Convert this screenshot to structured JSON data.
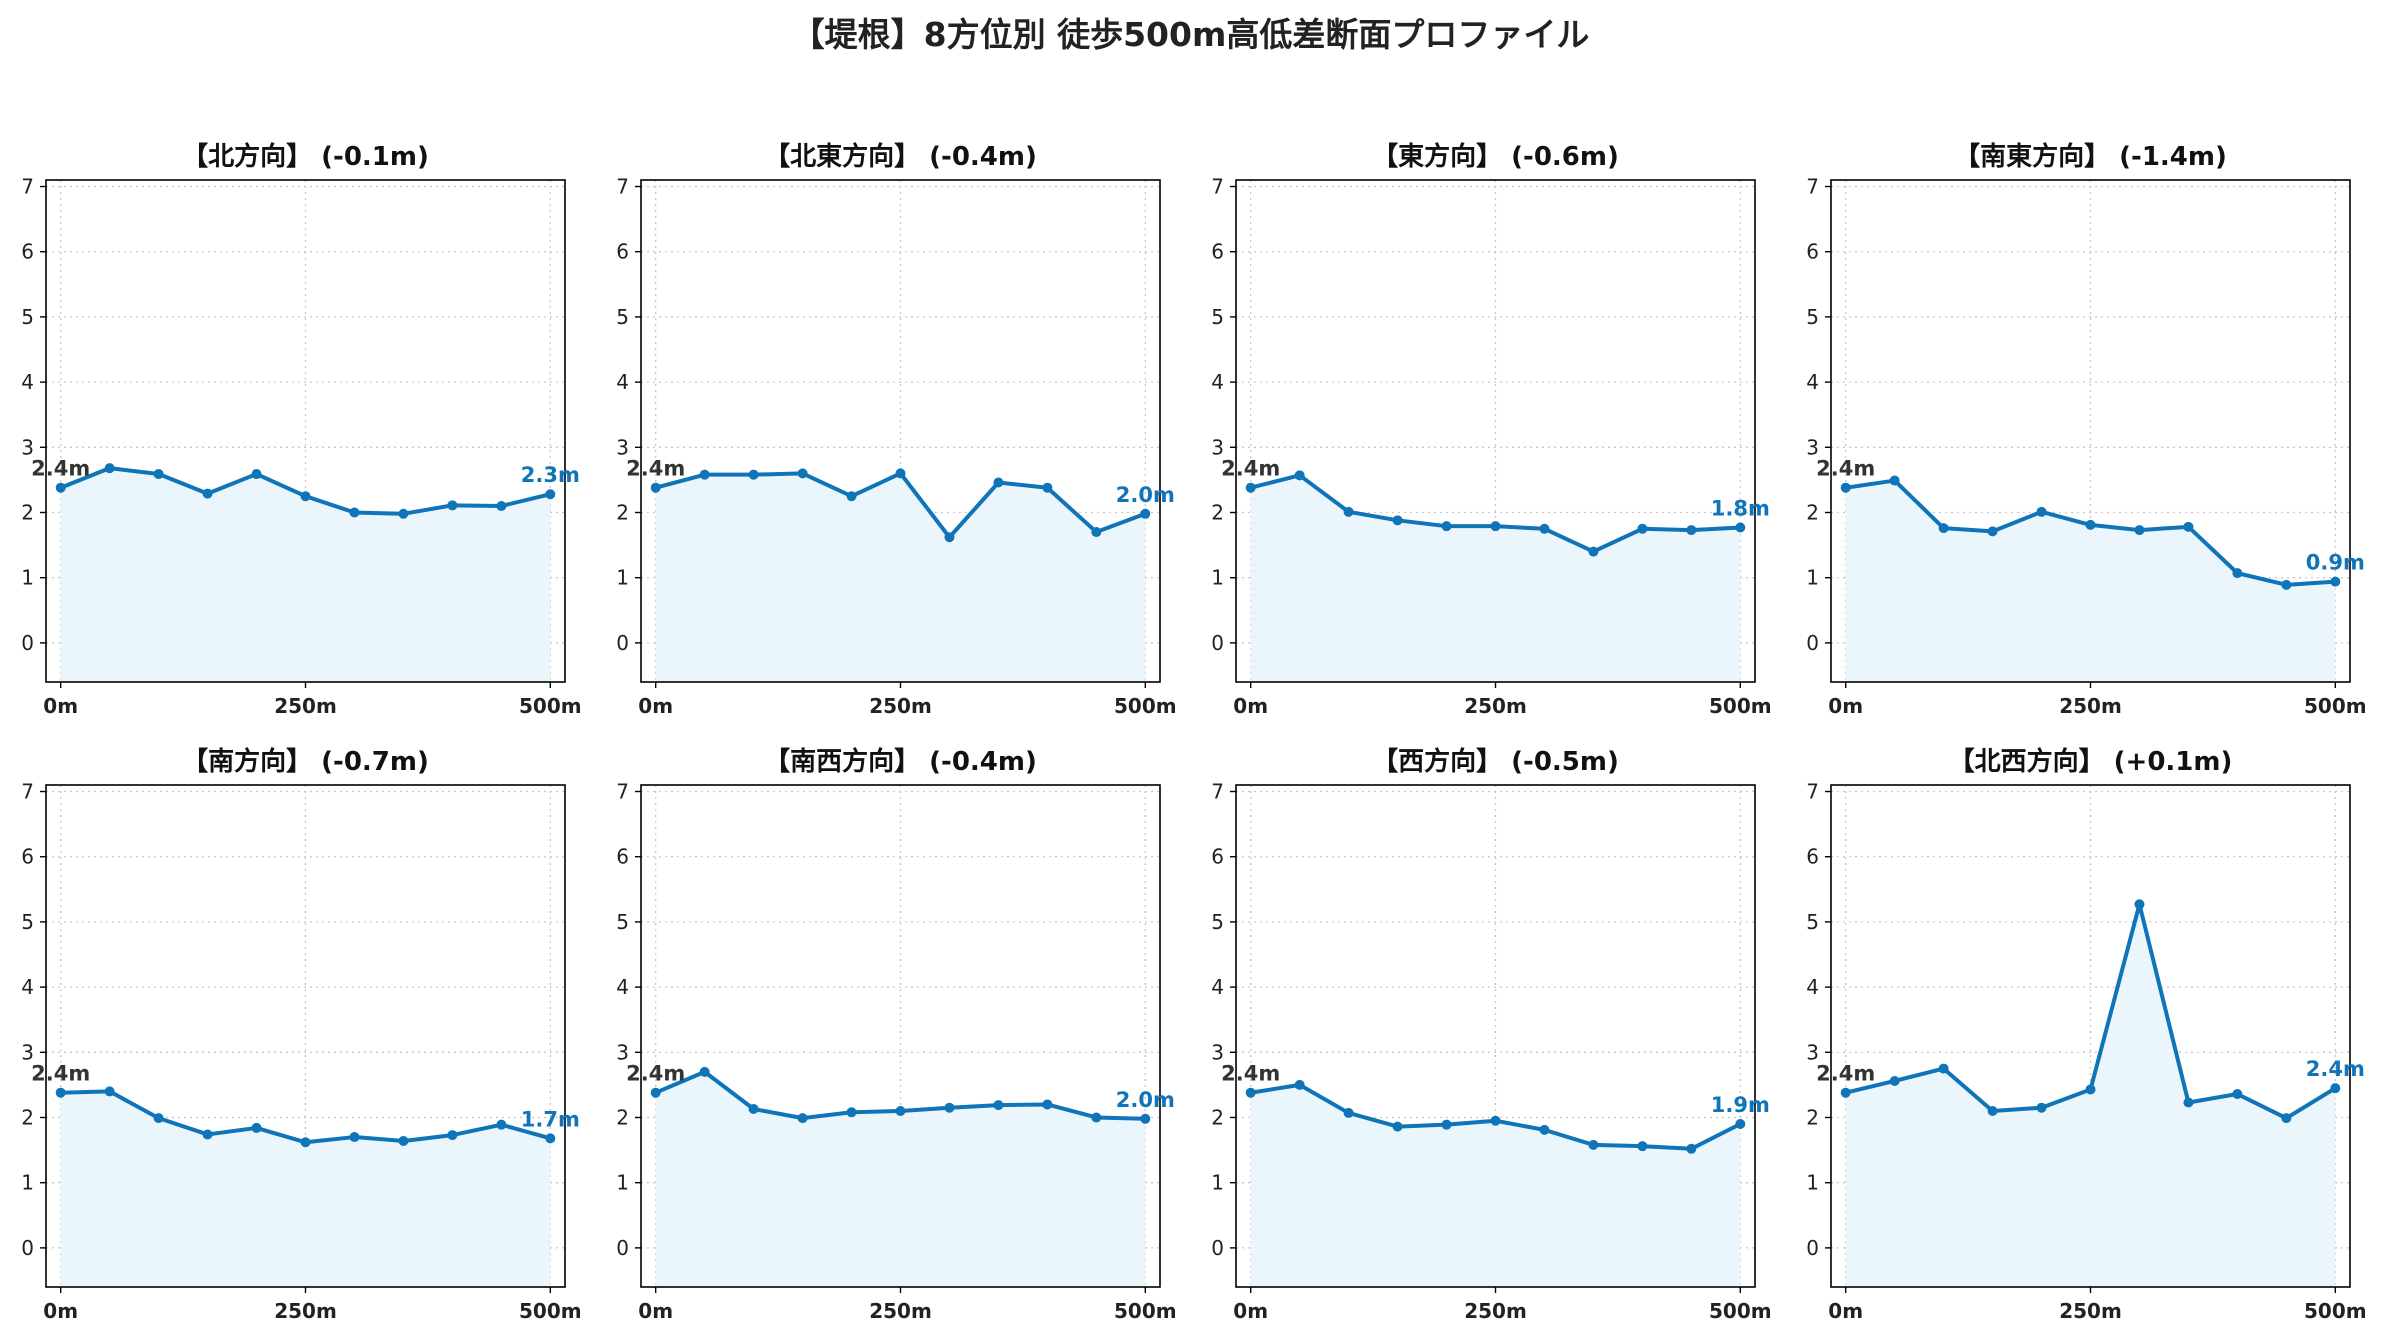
{
  "suptitle": "【堤根】8方位別 徒歩500m高低差断面プロファイル",
  "colors": {
    "line": "#0f74b8",
    "fill": "#eaf6fc",
    "start_label": "#333333",
    "end_label": "#0f74b8",
    "grid": "#c8c8c8",
    "axis": "#000000"
  },
  "chart_data": [
    {
      "type": "area",
      "title": "【北方向】 (-0.1m)",
      "x": [
        0,
        50,
        100,
        150,
        200,
        250,
        300,
        350,
        400,
        450,
        500
      ],
      "values": [
        2.38,
        2.68,
        2.59,
        2.29,
        2.59,
        2.25,
        2.0,
        1.98,
        2.11,
        2.1,
        2.28
      ],
      "start_label": "2.4m",
      "end_label": "2.3m",
      "x_ticks": [
        0,
        250,
        500
      ],
      "x_tick_labels": [
        "0m",
        "250m",
        "500m"
      ],
      "y_ticks": [
        0,
        1,
        2,
        3,
        4,
        5,
        6,
        7
      ],
      "ylim": [
        -0.6,
        7.1
      ],
      "xlim": [
        -15,
        515
      ],
      "grid": true
    },
    {
      "type": "area",
      "title": "【北東方向】 (-0.4m)",
      "x": [
        0,
        50,
        100,
        150,
        200,
        250,
        300,
        350,
        400,
        450,
        500
      ],
      "values": [
        2.38,
        2.58,
        2.58,
        2.6,
        2.25,
        2.6,
        1.62,
        2.46,
        2.38,
        1.7,
        1.98
      ],
      "start_label": "2.4m",
      "end_label": "2.0m",
      "x_ticks": [
        0,
        250,
        500
      ],
      "x_tick_labels": [
        "0m",
        "250m",
        "500m"
      ],
      "y_ticks": [
        0,
        1,
        2,
        3,
        4,
        5,
        6,
        7
      ],
      "ylim": [
        -0.6,
        7.1
      ],
      "xlim": [
        -15,
        515
      ],
      "grid": true
    },
    {
      "type": "area",
      "title": "【東方向】 (-0.6m)",
      "x": [
        0,
        50,
        100,
        150,
        200,
        250,
        300,
        350,
        400,
        450,
        500
      ],
      "values": [
        2.38,
        2.57,
        2.01,
        1.88,
        1.79,
        1.79,
        1.75,
        1.4,
        1.75,
        1.73,
        1.77
      ],
      "start_label": "2.4m",
      "end_label": "1.8m",
      "x_ticks": [
        0,
        250,
        500
      ],
      "x_tick_labels": [
        "0m",
        "250m",
        "500m"
      ],
      "y_ticks": [
        0,
        1,
        2,
        3,
        4,
        5,
        6,
        7
      ],
      "ylim": [
        -0.6,
        7.1
      ],
      "xlim": [
        -15,
        515
      ],
      "grid": true
    },
    {
      "type": "area",
      "title": "【南東方向】 (-1.4m)",
      "x": [
        0,
        50,
        100,
        150,
        200,
        250,
        300,
        350,
        400,
        450,
        500
      ],
      "values": [
        2.38,
        2.49,
        1.76,
        1.71,
        2.01,
        1.81,
        1.73,
        1.78,
        1.07,
        0.89,
        0.94
      ],
      "start_label": "2.4m",
      "end_label": "0.9m",
      "x_ticks": [
        0,
        250,
        500
      ],
      "x_tick_labels": [
        "0m",
        "250m",
        "500m"
      ],
      "y_ticks": [
        0,
        1,
        2,
        3,
        4,
        5,
        6,
        7
      ],
      "ylim": [
        -0.6,
        7.1
      ],
      "xlim": [
        -15,
        515
      ],
      "grid": true
    },
    {
      "type": "area",
      "title": "【南方向】 (-0.7m)",
      "x": [
        0,
        50,
        100,
        150,
        200,
        250,
        300,
        350,
        400,
        450,
        500
      ],
      "values": [
        2.38,
        2.4,
        1.99,
        1.74,
        1.84,
        1.62,
        1.7,
        1.64,
        1.73,
        1.89,
        1.68
      ],
      "start_label": "2.4m",
      "end_label": "1.7m",
      "x_ticks": [
        0,
        250,
        500
      ],
      "x_tick_labels": [
        "0m",
        "250m",
        "500m"
      ],
      "y_ticks": [
        0,
        1,
        2,
        3,
        4,
        5,
        6,
        7
      ],
      "ylim": [
        -0.6,
        7.1
      ],
      "xlim": [
        -15,
        515
      ],
      "grid": true
    },
    {
      "type": "area",
      "title": "【南西方向】 (-0.4m)",
      "x": [
        0,
        50,
        100,
        150,
        200,
        250,
        300,
        350,
        400,
        450,
        500
      ],
      "values": [
        2.38,
        2.7,
        2.13,
        1.99,
        2.08,
        2.1,
        2.15,
        2.19,
        2.2,
        2.0,
        1.98
      ],
      "start_label": "2.4m",
      "end_label": "2.0m",
      "x_ticks": [
        0,
        250,
        500
      ],
      "x_tick_labels": [
        "0m",
        "250m",
        "500m"
      ],
      "y_ticks": [
        0,
        1,
        2,
        3,
        4,
        5,
        6,
        7
      ],
      "ylim": [
        -0.6,
        7.1
      ],
      "xlim": [
        -15,
        515
      ],
      "grid": true
    },
    {
      "type": "area",
      "title": "【西方向】 (-0.5m)",
      "x": [
        0,
        50,
        100,
        150,
        200,
        250,
        300,
        350,
        400,
        450,
        500
      ],
      "values": [
        2.38,
        2.5,
        2.07,
        1.86,
        1.89,
        1.95,
        1.81,
        1.58,
        1.56,
        1.52,
        1.9
      ],
      "start_label": "2.4m",
      "end_label": "1.9m",
      "x_ticks": [
        0,
        250,
        500
      ],
      "x_tick_labels": [
        "0m",
        "250m",
        "500m"
      ],
      "y_ticks": [
        0,
        1,
        2,
        3,
        4,
        5,
        6,
        7
      ],
      "ylim": [
        -0.6,
        7.1
      ],
      "xlim": [
        -15,
        515
      ],
      "grid": true
    },
    {
      "type": "area",
      "title": "【北西方向】 (+0.1m)",
      "x": [
        0,
        50,
        100,
        150,
        200,
        250,
        300,
        350,
        400,
        450,
        500
      ],
      "values": [
        2.38,
        2.56,
        2.75,
        2.1,
        2.15,
        2.43,
        5.27,
        2.23,
        2.36,
        1.99,
        2.45
      ],
      "start_label": "2.4m",
      "end_label": "2.4m",
      "x_ticks": [
        0,
        250,
        500
      ],
      "x_tick_labels": [
        "0m",
        "250m",
        "500m"
      ],
      "y_ticks": [
        0,
        1,
        2,
        3,
        4,
        5,
        6,
        7
      ],
      "ylim": [
        -0.6,
        7.1
      ],
      "xlim": [
        -15,
        515
      ],
      "grid": true
    }
  ]
}
